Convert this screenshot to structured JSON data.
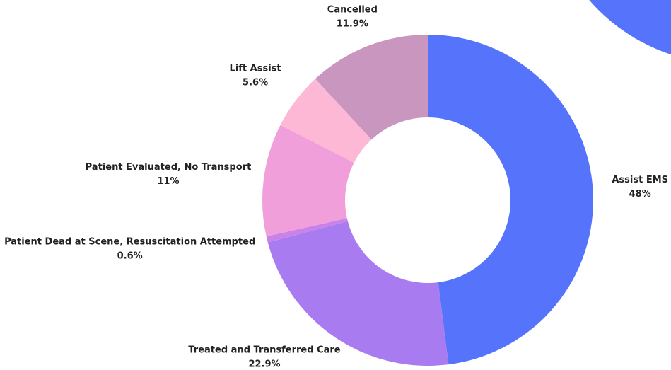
{
  "chart_data": {
    "type": "pie",
    "categories": [
      "Assist EMS",
      "Treated and Transferred Care",
      "Patient Dead at Scene, Resuscitation Attempted",
      "Patient Evaluated, No Transport",
      "Lift Assist",
      "Cancelled"
    ],
    "values": [
      48,
      22.9,
      0.6,
      11,
      5.6,
      11.9
    ],
    "value_labels": [
      "48%",
      "22.9%",
      "0.6%",
      "11%",
      "5.6%",
      "11.9%"
    ],
    "colors": [
      "#5574fb",
      "#a97bf0",
      "#c983e8",
      "#f09fda",
      "#fdb8d5",
      "#c996bf"
    ]
  }
}
